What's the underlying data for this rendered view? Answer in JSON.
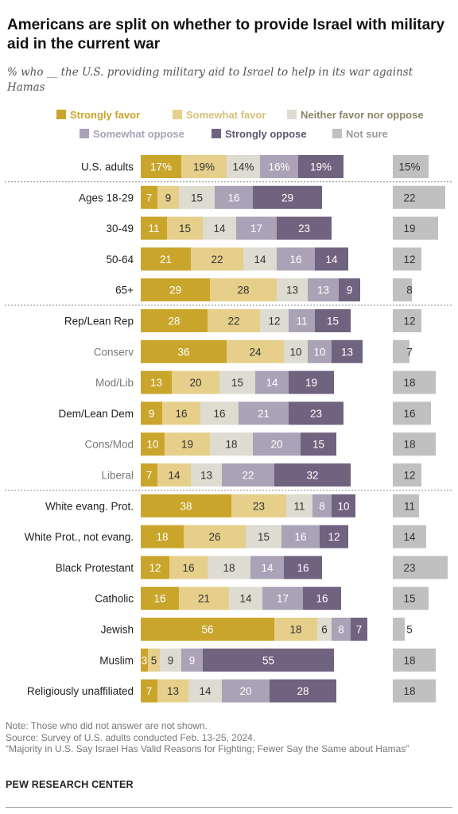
{
  "header": {
    "title": "Americans are split on whether to provide Israel with military aid in the current war",
    "subtitle": "% who __ the U.S. providing military aid to Israel to help in its war against Hamas"
  },
  "colors": {
    "strongly_favor": "#c9a52b",
    "somewhat_favor": "#e5cf8a",
    "neither": "#dedbd0",
    "somewhat_oppose": "#aaa2b6",
    "strongly_oppose": "#6f6380",
    "not_sure": "#c0c0c0",
    "legend_text": [
      "#c9a52b",
      "#d7c07a",
      "#8a8468",
      "#aaa2b6",
      "#5f5470",
      "#9a9a9a"
    ]
  },
  "chart_data": {
    "type": "bar",
    "orientation": "horizontal",
    "stacked": true,
    "series_names": [
      "Strongly favor",
      "Somewhat favor",
      "Neither favor nor oppose",
      "Somewhat oppose",
      "Strongly oppose"
    ],
    "extra_series": "Not sure",
    "rows": [
      {
        "label": "U.S. adults",
        "bold": true,
        "values": [
          17,
          19,
          14,
          16,
          19
        ],
        "labels": [
          "17%",
          "19%",
          "14%",
          "16%",
          "19%"
        ],
        "not_sure": 15,
        "not_sure_label": "15%"
      },
      {
        "label": "Ages 18-29",
        "bold": true,
        "values": [
          7,
          9,
          15,
          16,
          29
        ],
        "not_sure": 22
      },
      {
        "label": "30-49",
        "bold": true,
        "values": [
          11,
          15,
          14,
          17,
          23
        ],
        "not_sure": 19
      },
      {
        "label": "50-64",
        "bold": true,
        "values": [
          21,
          22,
          14,
          16,
          14
        ],
        "not_sure": 12
      },
      {
        "label": "65+",
        "bold": true,
        "values": [
          29,
          28,
          13,
          13,
          9
        ],
        "not_sure": 8
      },
      {
        "label": "Rep/Lean Rep",
        "bold": true,
        "values": [
          28,
          22,
          12,
          11,
          15
        ],
        "not_sure": 12
      },
      {
        "label": "Conserv",
        "bold": false,
        "values": [
          36,
          24,
          10,
          10,
          13
        ],
        "not_sure": 7
      },
      {
        "label": "Mod/Lib",
        "bold": false,
        "values": [
          13,
          20,
          15,
          14,
          19
        ],
        "not_sure": 18
      },
      {
        "label": "Dem/Lean Dem",
        "bold": true,
        "values": [
          9,
          16,
          16,
          21,
          23
        ],
        "not_sure": 16
      },
      {
        "label": "Cons/Mod",
        "bold": false,
        "values": [
          10,
          19,
          18,
          20,
          15
        ],
        "not_sure": 18
      },
      {
        "label": "Liberal",
        "bold": false,
        "values": [
          7,
          14,
          13,
          22,
          32
        ],
        "not_sure": 12
      },
      {
        "label": "White evang. Prot.",
        "bold": true,
        "values": [
          38,
          23,
          11,
          8,
          10
        ],
        "not_sure": 11
      },
      {
        "label": "White Prot., not evang.",
        "bold": true,
        "values": [
          18,
          26,
          15,
          16,
          12
        ],
        "not_sure": 14
      },
      {
        "label": "Black Protestant",
        "bold": true,
        "values": [
          12,
          16,
          18,
          14,
          16
        ],
        "not_sure": 23
      },
      {
        "label": "Catholic",
        "bold": true,
        "values": [
          16,
          21,
          14,
          17,
          16
        ],
        "not_sure": 15
      },
      {
        "label": "Jewish",
        "bold": true,
        "values": [
          56,
          18,
          6,
          8,
          7
        ],
        "not_sure": 5
      },
      {
        "label": "Muslim",
        "bold": true,
        "values": [
          3,
          5,
          9,
          9,
          55
        ],
        "not_sure": 18
      },
      {
        "label": "Religiously unaffiliated",
        "bold": true,
        "values": [
          7,
          13,
          14,
          20,
          28
        ],
        "not_sure": 18
      }
    ]
  },
  "legend": {
    "strongly_favor": "Strongly favor",
    "somewhat_favor": "Somewhat favor",
    "neither": "Neither favor nor oppose",
    "somewhat_oppose": "Somewhat oppose",
    "strongly_oppose": "Strongly oppose",
    "not_sure": "Not sure"
  },
  "footer": {
    "note": "Note: Those who did not answer are not shown.",
    "source": "Source: Survey of U.S. adults conducted Feb. 13-25, 2024.",
    "report": "“Majority in U.S. Say Israel Has Valid Reasons for Fighting; Fewer Say the Same about Hamas”",
    "brand": "PEW RESEARCH CENTER"
  }
}
